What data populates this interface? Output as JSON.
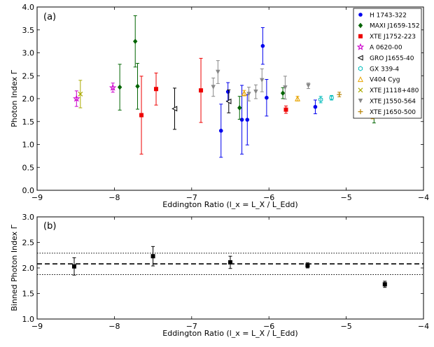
{
  "chart_data": [
    {
      "type": "scatter",
      "panel_label": "(a)",
      "xlabel": "Eddington Ratio (l_x = L_X / L_Edd)",
      "ylabel": "Photon Index Γ",
      "xlim": [
        -9,
        -4
      ],
      "ylim": [
        0.0,
        4.0
      ],
      "xticks": [
        "−9",
        "−8",
        "−7",
        "−6",
        "−5",
        "−4"
      ],
      "yticks": [
        "0.0",
        "0.5",
        "1.0",
        "1.5",
        "2.0",
        "2.5",
        "3.0",
        "3.5",
        "4.0"
      ],
      "legend_position": "top-right",
      "series": [
        {
          "name": "H 1743-322",
          "color": "#0000ee",
          "marker": "circle",
          "points": [
            {
              "x": -6.62,
              "y": 1.3,
              "e": 0.58
            },
            {
              "x": -6.53,
              "y": 2.15,
              "e": 0.2
            },
            {
              "x": -6.35,
              "y": 1.54,
              "e": 0.75
            },
            {
              "x": -6.28,
              "y": 1.54,
              "e": 0.55
            },
            {
              "x": -6.08,
              "y": 3.15,
              "e": 0.4
            },
            {
              "x": -6.03,
              "y": 2.02,
              "e": 0.4
            },
            {
              "x": -5.4,
              "y": 1.82,
              "e": 0.15
            },
            {
              "x": -4.68,
              "y": 1.76,
              "e": 0.1
            }
          ]
        },
        {
          "name": "MAXI J1659-152",
          "color": "#006400",
          "marker": "diamond",
          "points": [
            {
              "x": -7.93,
              "y": 2.25,
              "e": 0.5
            },
            {
              "x": -7.73,
              "y": 3.25,
              "e": 0.56
            },
            {
              "x": -7.7,
              "y": 2.27,
              "e": 0.5
            },
            {
              "x": -6.38,
              "y": 1.8,
              "e": 0.25
            },
            {
              "x": -5.82,
              "y": 2.12,
              "e": 0.12
            },
            {
              "x": -4.64,
              "y": 1.74,
              "e": 0.27
            }
          ]
        },
        {
          "name": "XTE J1752-223",
          "color": "#ee0000",
          "marker": "square",
          "points": [
            {
              "x": -7.65,
              "y": 1.64,
              "e": 0.85
            },
            {
              "x": -7.46,
              "y": 2.21,
              "e": 0.35
            },
            {
              "x": -6.88,
              "y": 2.18,
              "e": 0.7
            },
            {
              "x": -5.78,
              "y": 1.76,
              "e": 0.08
            }
          ]
        },
        {
          "name": "A 0620-00",
          "color": "#cc00cc",
          "marker": "star",
          "points": [
            {
              "x": -8.49,
              "y": 2.0,
              "e": 0.17
            },
            {
              "x": -8.02,
              "y": 2.24,
              "e": 0.1
            }
          ]
        },
        {
          "name": "GRO J1655-40",
          "color": "#000000",
          "marker": "tri-left",
          "points": [
            {
              "x": -7.22,
              "y": 1.78,
              "e": 0.45
            },
            {
              "x": -6.52,
              "y": 1.94,
              "e": 0.25
            }
          ]
        },
        {
          "name": "GX 339-4",
          "color": "#00bbbb",
          "marker": "hex",
          "points": [
            {
              "x": -5.33,
              "y": 1.98,
              "e": 0.07
            },
            {
              "x": -5.19,
              "y": 2.02,
              "e": 0.05
            }
          ]
        },
        {
          "name": "V404 Cyg",
          "color": "#e8a400",
          "marker": "tri-up",
          "points": [
            {
              "x": -6.32,
              "y": 2.12,
              "e": 0.06
            },
            {
              "x": -5.63,
              "y": 2.0,
              "e": 0.05
            },
            {
              "x": -4.66,
              "y": 1.68,
              "e": 0.12
            }
          ]
        },
        {
          "name": "XTE J1118+480",
          "color": "#aaaa00",
          "marker": "x",
          "points": [
            {
              "x": -8.44,
              "y": 2.1,
              "e": 0.3
            }
          ]
        },
        {
          "name": "XTE J1550-564",
          "color": "#888888",
          "marker": "tri-down",
          "points": [
            {
              "x": -6.72,
              "y": 2.25,
              "e": 0.2
            },
            {
              "x": -6.66,
              "y": 2.58,
              "e": 0.25
            },
            {
              "x": -6.26,
              "y": 2.1,
              "e": 0.15
            },
            {
              "x": -6.17,
              "y": 2.15,
              "e": 0.15
            },
            {
              "x": -6.09,
              "y": 2.4,
              "e": 0.25
            },
            {
              "x": -5.79,
              "y": 2.24,
              "e": 0.25
            },
            {
              "x": -5.49,
              "y": 2.28,
              "e": 0.06
            }
          ]
        },
        {
          "name": "XTE J1650-500",
          "color": "#b8860b",
          "marker": "plus",
          "points": [
            {
              "x": -5.09,
              "y": 2.09,
              "e": 0.05
            },
            {
              "x": -4.66,
              "y": 1.64,
              "e": 0.05
            }
          ]
        }
      ]
    },
    {
      "type": "scatter",
      "panel_label": "(b)",
      "xlabel": "Eddington Ratio (l_x = L_X / L_Edd)",
      "ylabel": "Binned Photon Index Γ",
      "xlim": [
        -9,
        -4
      ],
      "ylim": [
        1.0,
        3.0
      ],
      "xticks": [
        "−9",
        "−8",
        "−7",
        "−6",
        "−5",
        "−4"
      ],
      "yticks": [
        "1.0",
        "1.5",
        "2.0",
        "2.5",
        "3.0"
      ],
      "reference_lines": [
        {
          "y": 2.08,
          "style": "dashed"
        },
        {
          "y": 2.29,
          "style": "dotted"
        },
        {
          "y": 1.87,
          "style": "dotted"
        }
      ],
      "series": [
        {
          "name": "",
          "color": "#000000",
          "marker": "square",
          "points": [
            {
              "x": -8.52,
              "y": 2.03,
              "e": 0.17
            },
            {
              "x": -7.5,
              "y": 2.23,
              "e": 0.19
            },
            {
              "x": -6.5,
              "y": 2.11,
              "e": 0.12
            },
            {
              "x": -5.5,
              "y": 2.05,
              "e": 0.05
            },
            {
              "x": -4.5,
              "y": 1.68,
              "e": 0.06
            }
          ]
        }
      ]
    }
  ]
}
